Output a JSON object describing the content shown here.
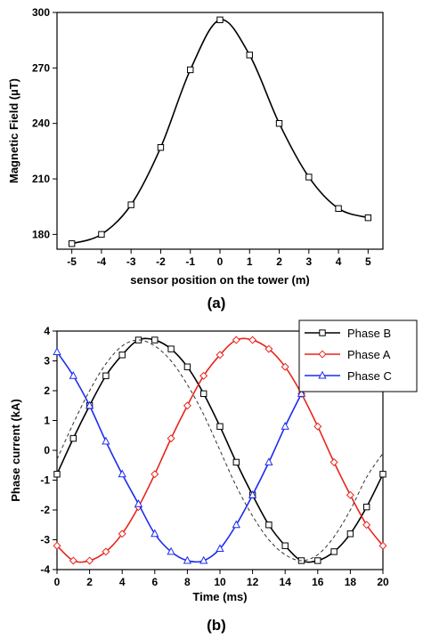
{
  "chart_data": [
    {
      "type": "line",
      "panel_label": "(a)",
      "xlabel": "sensor position on the tower (m)",
      "ylabel": "Magnetic Field (µT)",
      "xlim": [
        -5.5,
        5.5
      ],
      "ylim": [
        172,
        300
      ],
      "x_ticks": [
        -5,
        -4,
        -3,
        -2,
        -1,
        0,
        1,
        2,
        3,
        4,
        5
      ],
      "y_ticks": [
        180,
        210,
        240,
        270,
        300
      ],
      "series": [
        {
          "color": "#000000",
          "marker": "square",
          "x": [
            -5,
            -4,
            -3,
            -2,
            -1,
            0,
            1,
            2,
            3,
            4,
            5
          ],
          "y": [
            175,
            180,
            196,
            227,
            269,
            296,
            277,
            240,
            211,
            194,
            189
          ]
        }
      ]
    },
    {
      "type": "line",
      "panel_label": "(b)",
      "xlabel": "Time (ms)",
      "ylabel": "Phase current (kA)",
      "xlim": [
        0,
        20
      ],
      "ylim": [
        -4,
        4
      ],
      "x_ticks": [
        0,
        2,
        4,
        6,
        8,
        10,
        12,
        14,
        16,
        18,
        20
      ],
      "y_ticks": [
        -4,
        -3,
        -2,
        -1,
        0,
        1,
        2,
        3,
        4
      ],
      "legend_position": "top-right",
      "series": [
        {
          "name": "Phase B",
          "color": "#000000",
          "marker": "square",
          "x": [
            0,
            1,
            2,
            3,
            4,
            5,
            6,
            7,
            8,
            9,
            10,
            11,
            12,
            13,
            14,
            15,
            16,
            17,
            18,
            19,
            20
          ],
          "y": [
            -0.8,
            0.4,
            1.5,
            2.5,
            3.2,
            3.7,
            3.7,
            3.4,
            2.8,
            1.9,
            0.8,
            -0.4,
            -1.5,
            -2.5,
            -3.2,
            -3.7,
            -3.7,
            -3.4,
            -2.8,
            -1.9,
            -0.8
          ]
        },
        {
          "name": "Phase A",
          "color": "#e8241c",
          "marker": "diamond",
          "x": [
            0,
            1,
            2,
            3,
            4,
            5,
            6,
            7,
            8,
            9,
            10,
            11,
            12,
            13,
            14,
            15,
            16,
            17,
            18,
            19,
            20
          ],
          "y": [
            -3.2,
            -3.7,
            -3.7,
            -3.4,
            -2.8,
            -1.9,
            -0.8,
            0.4,
            1.5,
            2.5,
            3.2,
            3.7,
            3.7,
            3.4,
            2.8,
            1.9,
            0.8,
            -0.4,
            -1.5,
            -2.5,
            -3.2
          ]
        },
        {
          "name": "Phase C",
          "color": "#1c2cf0",
          "marker": "triangle",
          "x": [
            0,
            1,
            2,
            3,
            4,
            5,
            6,
            7,
            8,
            9,
            10,
            11,
            12,
            13,
            14,
            15
          ],
          "y": [
            3.3,
            2.5,
            1.5,
            0.3,
            -0.8,
            -1.8,
            -2.8,
            -3.4,
            -3.7,
            -3.7,
            -3.3,
            -2.5,
            -1.5,
            -0.4,
            0.8,
            1.9
          ]
        },
        {
          "color": "#333333",
          "style": "dashed",
          "x": [
            0,
            1,
            2,
            3,
            4,
            5,
            6,
            7,
            8,
            9,
            10,
            11,
            12,
            13,
            14,
            15,
            16,
            17,
            18,
            19,
            20
          ],
          "y": [
            -0.3,
            0.9,
            2.0,
            2.9,
            3.5,
            3.7,
            3.5,
            3.0,
            2.2,
            1.2,
            0.0,
            -1.2,
            -2.2,
            -3.0,
            -3.5,
            -3.7,
            -3.5,
            -2.9,
            -2.0,
            -0.9,
            -0.1
          ]
        }
      ]
    }
  ]
}
